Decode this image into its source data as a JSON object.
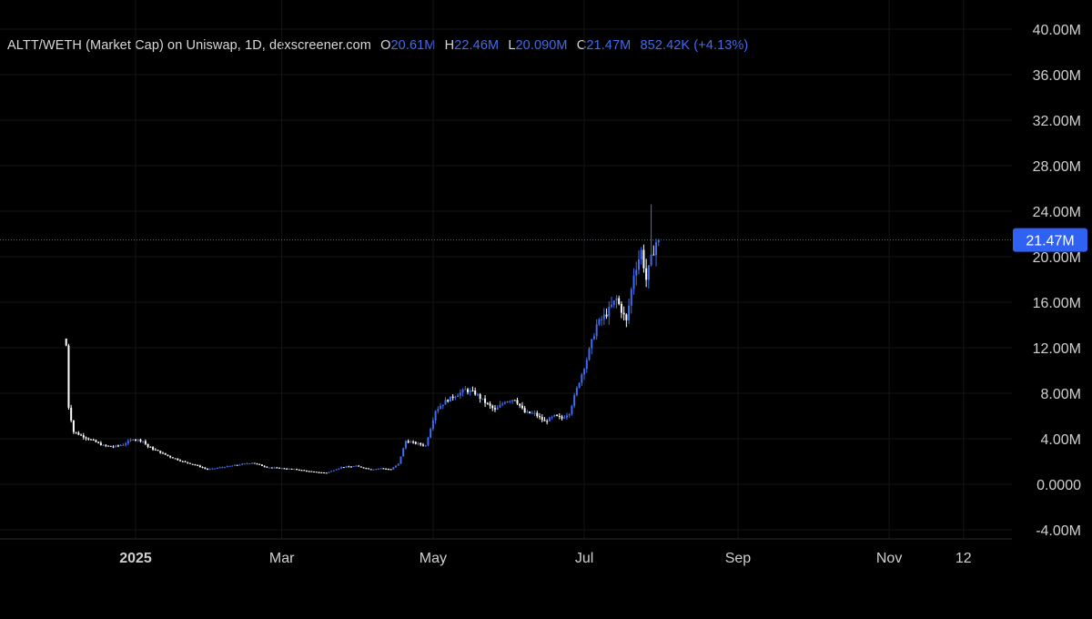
{
  "legend": {
    "symbol": "ALTT/WETH (Market Cap) on Uniswap, 1D, dexscreener.com",
    "open_key": "O",
    "open": "20.61M",
    "high_key": "H",
    "high": "22.46M",
    "low_key": "L",
    "low": "20.090M",
    "close_key": "C",
    "close": "21.47M",
    "change": "852.42K (+4.13%)"
  },
  "colors": {
    "background": "#000000",
    "up": "#3f6cf0",
    "down": "#ffffff",
    "grid": "#141414",
    "price_line": "#3f6cf0",
    "price_tag": "#2f62f2"
  },
  "chart_data": {
    "type": "candlestick",
    "y_axis_ticks": [
      "-4.00M",
      "0.0000",
      "4.00M",
      "8.00M",
      "12.00M",
      "16.00M",
      "20.00M",
      "24.00M",
      "28.00M",
      "32.00M",
      "36.00M",
      "40.00M"
    ],
    "y_tick_values": [
      -4,
      0,
      4,
      8,
      12,
      16,
      20,
      24,
      28,
      32,
      36,
      40
    ],
    "ylim": [
      -4,
      40
    ],
    "unit": "M",
    "x_axis_ticks": [
      {
        "label": "2025",
        "day": 31,
        "bold": true
      },
      {
        "label": "Mar",
        "day": 90,
        "bold": false
      },
      {
        "label": "May",
        "day": 151,
        "bold": false
      },
      {
        "label": "Jul",
        "day": 212,
        "bold": false
      },
      {
        "label": "Sep",
        "day": 274,
        "bold": false
      },
      {
        "label": "Nov",
        "day": 335,
        "bold": false
      },
      {
        "label": "12",
        "day": 365,
        "bold": false
      }
    ],
    "current_price": 21.47,
    "current_price_label": "21.47M",
    "series_keypoints": [
      [
        3,
        12.2
      ],
      [
        4,
        6.8
      ],
      [
        6,
        4.6
      ],
      [
        10,
        4.2
      ],
      [
        14,
        3.8
      ],
      [
        18,
        3.4
      ],
      [
        22,
        3.3
      ],
      [
        26,
        3.5
      ],
      [
        30,
        4.0
      ],
      [
        34,
        3.8
      ],
      [
        36,
        3.3
      ],
      [
        40,
        2.9
      ],
      [
        45,
        2.4
      ],
      [
        50,
        2.0
      ],
      [
        55,
        1.7
      ],
      [
        60,
        1.3
      ],
      [
        66,
        1.5
      ],
      [
        72,
        1.7
      ],
      [
        78,
        1.9
      ],
      [
        84,
        1.5
      ],
      [
        90,
        1.4
      ],
      [
        96,
        1.3
      ],
      [
        102,
        1.1
      ],
      [
        108,
        1.0
      ],
      [
        114,
        1.5
      ],
      [
        120,
        1.6
      ],
      [
        126,
        1.3
      ],
      [
        130,
        1.4
      ],
      [
        134,
        1.3
      ],
      [
        137,
        1.8
      ],
      [
        140,
        3.8
      ],
      [
        144,
        3.6
      ],
      [
        148,
        3.4
      ],
      [
        152,
        6.5
      ],
      [
        156,
        7.3
      ],
      [
        160,
        7.8
      ],
      [
        164,
        8.3
      ],
      [
        168,
        8.0
      ],
      [
        172,
        7.2
      ],
      [
        176,
        6.5
      ],
      [
        180,
        7.3
      ],
      [
        184,
        7.5
      ],
      [
        188,
        6.3
      ],
      [
        192,
        6.2
      ],
      [
        196,
        5.5
      ],
      [
        200,
        6.0
      ],
      [
        203,
        5.8
      ],
      [
        206,
        6.3
      ],
      [
        209,
        8.4
      ],
      [
        213,
        11.0
      ],
      [
        217,
        14.0
      ],
      [
        221,
        15.0
      ],
      [
        225,
        16.3
      ],
      [
        229,
        14.3
      ],
      [
        232,
        18.5
      ],
      [
        235,
        20.5
      ],
      [
        237,
        18.0
      ],
      [
        239,
        19.8
      ],
      [
        241,
        21.3
      ],
      [
        242,
        21.47
      ]
    ],
    "spikes": [
      [
        3,
        12.2
      ],
      [
        239,
        24.6
      ]
    ]
  }
}
